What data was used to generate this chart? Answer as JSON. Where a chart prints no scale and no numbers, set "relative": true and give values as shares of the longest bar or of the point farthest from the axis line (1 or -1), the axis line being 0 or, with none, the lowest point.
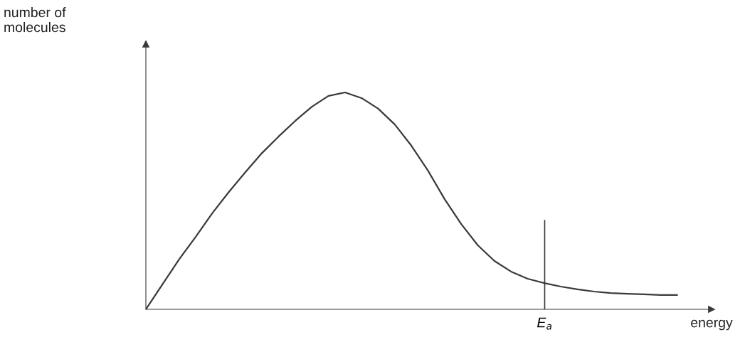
{
  "chart_data": {
    "type": "line",
    "relative": true,
    "xlabel": "energy",
    "categories": [
      null,
      null,
      null,
      null,
      null,
      null,
      null,
      null,
      null,
      null,
      null,
      null,
      null,
      null,
      null,
      null,
      null,
      null,
      null,
      null,
      null,
      null,
      null,
      null,
      null,
      null,
      null,
      null,
      null,
      null,
      null,
      null,
      null
    ],
    "series": [
      {
        "color": "#3a3a3a",
        "values": [
          0,
          0.115,
          0.23,
          0.334,
          0.443,
          0.541,
          0.633,
          0.721,
          0.797,
          0.869,
          0.934,
          0.984,
          1,
          0.974,
          0.925,
          0.852,
          0.754,
          0.639,
          0.508,
          0.393,
          0.295,
          0.223,
          0.174,
          0.141,
          0.121,
          0.105,
          0.092,
          0.082,
          0.075,
          0.072,
          0.069,
          0.066,
          0.066
        ]
      }
    ],
    "annotations": [
      "number of\nmolecules",
      "E$_{a}$"
    ],
    "grid": false,
    "legend": false
  }
}
